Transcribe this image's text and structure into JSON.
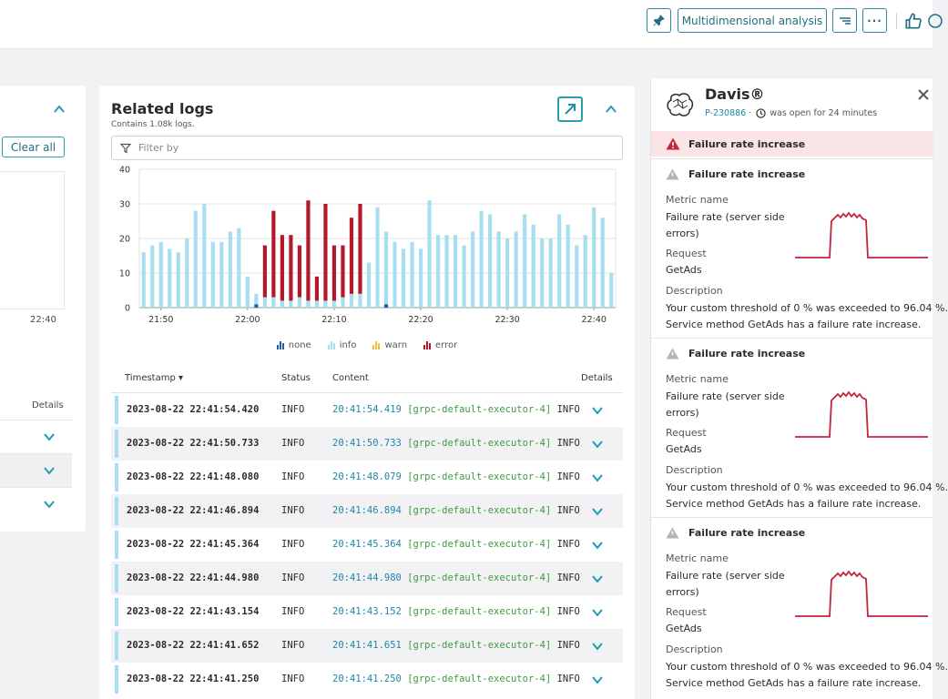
{
  "toolbar": {
    "multidimensional_label": "Multidimensional analysis",
    "more_label": "···"
  },
  "left_panel": {
    "clear_label": "Clear all",
    "axis_tick": "22:40",
    "details_label": "Details"
  },
  "logs": {
    "title": "Related logs",
    "subtitle": "Contains 1.08k logs.",
    "filter_placeholder": "Filter by",
    "columns": {
      "timestamp": "Timestamp ▾",
      "status": "Status",
      "content": "Content",
      "details": "Details"
    },
    "rows": [
      {
        "timestamp": "2023-08-22 22:41:54.420",
        "status": "INFO",
        "time": "20:41:54.419",
        "thread": "[grpc-default-executor-4]",
        "level": "INFO"
      },
      {
        "timestamp": "2023-08-22 22:41:50.733",
        "status": "INFO",
        "time": "20:41:50.733",
        "thread": "[grpc-default-executor-4]",
        "level": "INFO"
      },
      {
        "timestamp": "2023-08-22 22:41:48.080",
        "status": "INFO",
        "time": "20:41:48.079",
        "thread": "[grpc-default-executor-4]",
        "level": "INFO"
      },
      {
        "timestamp": "2023-08-22 22:41:46.894",
        "status": "INFO",
        "time": "20:41:46.894",
        "thread": "[grpc-default-executor-4]",
        "level": "INFO"
      },
      {
        "timestamp": "2023-08-22 22:41:45.364",
        "status": "INFO",
        "time": "20:41:45.364",
        "thread": "[grpc-default-executor-4]",
        "level": "INFO"
      },
      {
        "timestamp": "2023-08-22 22:41:44.980",
        "status": "INFO",
        "time": "20:41:44.980",
        "thread": "[grpc-default-executor-4]",
        "level": "INFO"
      },
      {
        "timestamp": "2023-08-22 22:41:43.154",
        "status": "INFO",
        "time": "20:41:43.152",
        "thread": "[grpc-default-executor-4]",
        "level": "INFO"
      },
      {
        "timestamp": "2023-08-22 22:41:41.652",
        "status": "INFO",
        "time": "20:41:41.651",
        "thread": "[grpc-default-executor-4]",
        "level": "INFO"
      },
      {
        "timestamp": "2023-08-22 22:41:41.250",
        "status": "INFO",
        "time": "20:41:41.250",
        "thread": "[grpc-default-executor-4]",
        "level": "INFO"
      }
    ]
  },
  "chart_data": {
    "type": "bar",
    "stacked": true,
    "ylim": [
      0,
      40
    ],
    "yticks": [
      "0",
      "10",
      "20",
      "30",
      "40"
    ],
    "xtick_labels": [
      "21:50",
      "22:00",
      "22:10",
      "22:20",
      "22:30",
      "22:40"
    ],
    "xtick_slots": [
      2,
      12,
      22,
      32,
      42,
      52
    ],
    "slots": 55,
    "grid": true,
    "legend_position": "bottom-center",
    "series": [
      {
        "name": "none",
        "color": "#1f5ea8",
        "values": [
          0,
          0,
          0,
          0,
          0,
          0,
          0,
          0,
          0,
          0,
          0,
          0,
          0,
          1,
          0,
          0,
          0,
          0,
          0,
          0,
          0,
          0,
          0,
          0,
          0,
          0,
          0,
          0,
          1,
          0,
          0,
          0,
          0,
          0,
          0,
          0,
          0,
          0,
          0,
          0,
          0,
          0,
          0,
          0,
          0,
          0,
          0,
          0,
          0,
          0,
          0,
          0,
          0,
          0,
          0
        ]
      },
      {
        "name": "info",
        "color": "#a8dff0",
        "values": [
          16,
          18,
          19,
          17,
          16,
          20,
          28,
          30,
          19,
          19,
          22,
          23,
          9,
          3,
          3,
          3,
          2,
          2,
          3,
          2,
          2,
          2,
          2,
          3,
          4,
          4,
          13,
          29,
          21,
          19,
          17,
          19,
          17,
          31,
          21,
          21,
          21,
          18,
          22,
          28,
          27,
          22,
          20,
          22,
          27,
          24,
          20,
          20,
          27,
          24,
          18,
          21,
          29,
          26,
          10
        ]
      },
      {
        "name": "warn",
        "color": "#f2c230",
        "values": [
          0,
          0,
          0,
          0,
          0,
          0,
          0,
          0,
          0,
          0,
          0,
          0,
          0,
          0,
          0,
          0,
          0,
          0,
          0,
          0,
          0,
          0,
          0,
          0,
          0,
          0,
          0,
          0,
          0,
          0,
          0,
          0,
          0,
          0,
          0,
          0,
          0,
          0,
          0,
          0,
          0,
          0,
          0,
          0,
          0,
          0,
          0,
          0,
          0,
          0,
          0,
          0,
          0,
          0,
          0
        ]
      },
      {
        "name": "error",
        "color": "#b5182b",
        "values": [
          0,
          0,
          0,
          0,
          0,
          0,
          0,
          0,
          0,
          0,
          0,
          0,
          0,
          0,
          15,
          25,
          19,
          19,
          15,
          29,
          7,
          28,
          16,
          15,
          22,
          26,
          0,
          0,
          0,
          0,
          0,
          0,
          0,
          0,
          0,
          0,
          0,
          0,
          0,
          0,
          0,
          0,
          0,
          0,
          0,
          0,
          0,
          0,
          0,
          0,
          0,
          0,
          0,
          0,
          0
        ]
      }
    ]
  },
  "davis": {
    "title": "Davis®",
    "problem_id": "P-230886",
    "separator": "·",
    "status_text": "was open for 24 minutes",
    "banner": "Failure rate increase",
    "events": [
      {
        "title": "Failure rate increase",
        "metric_label": "Metric name",
        "metric_value": "Failure rate (server side errors)",
        "request_label": "Request",
        "request_value": "GetAds",
        "description_label": "Description",
        "description_line1": "Your custom threshold of 0 % was exceeded to 96.04 %.",
        "description_line2": "Service method GetAds has a failure rate increase."
      },
      {
        "title": "Failure rate increase",
        "metric_label": "Metric name",
        "metric_value": "Failure rate (server side errors)",
        "request_label": "Request",
        "request_value": "GetAds",
        "description_label": "Description",
        "description_line1": "Your custom threshold of 0 % was exceeded to 96.04 %.",
        "description_line2": "Service method GetAds has a failure rate increase."
      },
      {
        "title": "Failure rate increase",
        "metric_label": "Metric name",
        "metric_value": "Failure rate (server side errors)",
        "request_label": "Request",
        "request_value": "GetAds",
        "description_label": "Description",
        "description_line1": "Your custom threshold of 0 % was exceeded to 96.04 %.",
        "description_line2": "Service method GetAds has a failure rate increase."
      }
    ]
  },
  "colors": {
    "accent": "#2b9cb0",
    "error": "#b5182b",
    "info": "#a8dff0",
    "alert_bg": "#fbe4e6"
  }
}
